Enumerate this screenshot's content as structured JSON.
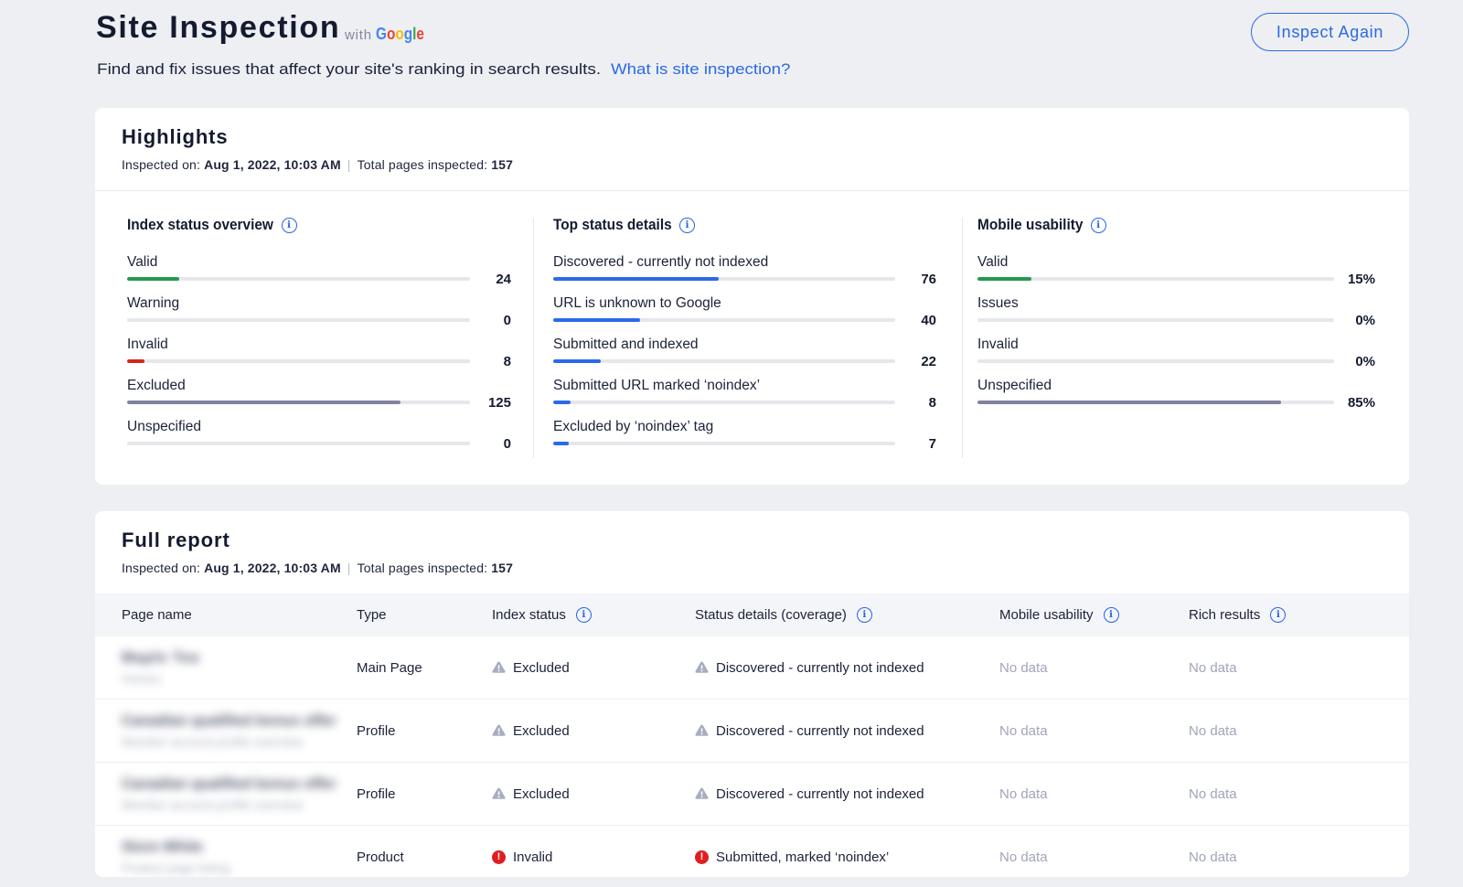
{
  "page": {
    "title": "Site Inspection",
    "with_label": "with",
    "brand": {
      "name": "Google",
      "letters": [
        {
          "ch": "G",
          "color": "#4285F4"
        },
        {
          "ch": "o",
          "color": "#EA4335"
        },
        {
          "ch": "o",
          "color": "#FBBC05"
        },
        {
          "ch": "g",
          "color": "#4285F4"
        },
        {
          "ch": "l",
          "color": "#34A853"
        },
        {
          "ch": "e",
          "color": "#EA4335"
        }
      ]
    },
    "description": "Find and fix issues that affect your site's ranking in search results.",
    "description_link": "What is site inspection?",
    "inspect_again_label": "Inspect Again"
  },
  "meta": {
    "inspected_on_label": "Inspected on:",
    "inspected_on_value": "Aug 1, 2022, 10:03 AM",
    "separator": "|",
    "total_pages_label": "Total pages inspected:",
    "total_pages_value": "157"
  },
  "highlights": {
    "title": "Highlights",
    "columns": [
      {
        "title": "Index status overview",
        "rows": [
          {
            "label": "Valid",
            "value": "24",
            "percent": 15.3,
            "color": "green"
          },
          {
            "label": "Warning",
            "value": "0",
            "percent": 0,
            "color": "green"
          },
          {
            "label": "Invalid",
            "value": "8",
            "percent": 5.1,
            "color": "red"
          },
          {
            "label": "Excluded",
            "value": "125",
            "percent": 79.6,
            "color": "slate"
          },
          {
            "label": "Unspecified",
            "value": "0",
            "percent": 0,
            "color": "slate"
          }
        ]
      },
      {
        "title": "Top status details",
        "rows": [
          {
            "label": "Discovered - currently not indexed",
            "value": "76",
            "percent": 48.4,
            "color": "blue"
          },
          {
            "label": "URL is unknown to Google",
            "value": "40",
            "percent": 25.5,
            "color": "blue"
          },
          {
            "label": "Submitted and indexed",
            "value": "22",
            "percent": 14.0,
            "color": "blue"
          },
          {
            "label": "Submitted URL marked ‘noindex’",
            "value": "8",
            "percent": 5.1,
            "color": "blue"
          },
          {
            "label": "Excluded by ‘noindex’ tag",
            "value": "7",
            "percent": 4.5,
            "color": "blue"
          }
        ]
      },
      {
        "title": "Mobile usability",
        "rows": [
          {
            "label": "Valid",
            "value": "15%",
            "percent": 15,
            "color": "green"
          },
          {
            "label": "Issues",
            "value": "0%",
            "percent": 0,
            "color": "green"
          },
          {
            "label": "Invalid",
            "value": "0%",
            "percent": 0,
            "color": "red"
          },
          {
            "label": "Unspecified",
            "value": "85%",
            "percent": 85,
            "color": "slate"
          }
        ]
      }
    ]
  },
  "report": {
    "title": "Full report",
    "headers": [
      "Page name",
      "Type",
      "Index status",
      "Status details (coverage)",
      "Mobile usability",
      "Rich results"
    ],
    "no_data": "No data",
    "rows": [
      {
        "redacted_name_line1": "Maple Tea",
        "redacted_name_line2": "Homes",
        "type": "Main Page",
        "index_status": "Excluded",
        "status_details": "Discovered - currently not indexed",
        "mobile_usability": "No data",
        "rich_results": "No data"
      },
      {
        "redacted_name_line1": "Canadian qualified bonus offer",
        "redacted_name_line2": "Member account profile overview",
        "type": "Profile",
        "index_status": "Excluded",
        "status_details": "Discovered - currently not indexed",
        "mobile_usability": "No data",
        "rich_results": "No data"
      },
      {
        "redacted_name_line1": "Canadian qualified bonus offer",
        "redacted_name_line2": "Member account profile overview",
        "type": "Profile",
        "index_status": "Excluded",
        "status_details": "Discovered - currently not indexed",
        "mobile_usability": "No data",
        "rich_results": "No data"
      },
      {
        "redacted_name_line1": "Store White",
        "redacted_name_line2": "Product page listing",
        "type": "Product",
        "index_status": "Invalid",
        "status_details": "Submitted, marked ‘noindex’",
        "mobile_usability": "No data",
        "rich_results": "No data"
      }
    ]
  }
}
